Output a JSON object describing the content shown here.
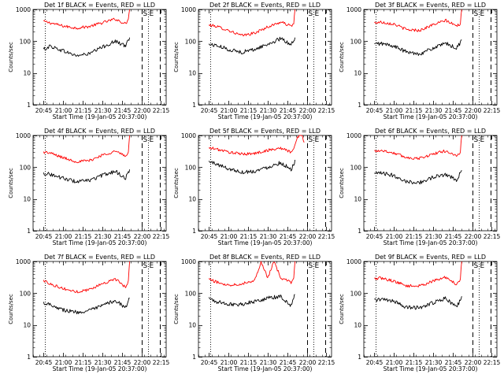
{
  "chart_data": [
    {
      "type": "line",
      "title": "Det 1f BLACK = Events, RED = LLD",
      "xlabel": "Start Time (19-Jan-05 20:37:00)",
      "ylabel": "Counts/sec",
      "yscale": "log",
      "ylim": [
        1,
        1000
      ],
      "xlim": [
        "20:37",
        "22:19"
      ],
      "x_ticks": [
        "20:45",
        "21:00",
        "21:15",
        "21:30",
        "21:45",
        "22:00",
        "22:15"
      ],
      "y_ticks": [
        "1",
        "10",
        "100",
        "1000"
      ],
      "markers": {
        "dotted": [
          "20:46",
          "22:05"
        ],
        "dashed": [
          "22:00",
          "22:14"
        ],
        "labels": [
          "S",
          "E"
        ]
      },
      "series": [
        {
          "color": "#ff0000",
          "x": [
            "20:45",
            "20:50",
            "21:00",
            "21:10",
            "21:20",
            "21:30",
            "21:40",
            "21:48",
            "21:50",
            "21:51"
          ],
          "values": [
            420,
            380,
            300,
            260,
            290,
            380,
            500,
            350,
            500,
            1100
          ]
        },
        {
          "color": "#000000",
          "x": [
            "20:45",
            "20:50",
            "21:00",
            "21:10",
            "21:20",
            "21:30",
            "21:40",
            "21:48",
            "21:50",
            "21:51"
          ],
          "values": [
            55,
            70,
            50,
            35,
            40,
            65,
            100,
            70,
            110,
            130
          ]
        }
      ]
    },
    {
      "type": "line",
      "title": "Det 2f BLACK = Events, RED = LLD",
      "xlabel": "Start Time (19-Jan-05 20:37:00)",
      "ylabel": "Counts/sec",
      "yscale": "log",
      "ylim": [
        1,
        1000
      ],
      "xlim": [
        "20:37",
        "22:19"
      ],
      "x_ticks": [
        "20:45",
        "21:00",
        "21:15",
        "21:30",
        "21:45",
        "22:00",
        "22:15"
      ],
      "y_ticks": [
        "1",
        "10",
        "100",
        "1000"
      ],
      "markers": {
        "dotted": [
          "20:46",
          "22:05"
        ],
        "dashed": [
          "22:00",
          "22:14"
        ],
        "labels": [
          "S",
          "E"
        ]
      },
      "series": [
        {
          "color": "#ff0000",
          "x": [
            "20:45",
            "20:50",
            "21:00",
            "21:10",
            "21:20",
            "21:30",
            "21:40",
            "21:48",
            "21:50",
            "21:51"
          ],
          "values": [
            320,
            300,
            220,
            150,
            180,
            280,
            400,
            300,
            350,
            1200
          ]
        },
        {
          "color": "#000000",
          "x": [
            "20:45",
            "20:50",
            "21:00",
            "21:10",
            "21:20",
            "21:30",
            "21:40",
            "21:48",
            "21:50",
            "21:51"
          ],
          "values": [
            80,
            75,
            55,
            45,
            55,
            80,
            120,
            80,
            110,
            130
          ]
        }
      ]
    },
    {
      "type": "line",
      "title": "Det 3f BLACK = Events, RED = LLD",
      "xlabel": "Start Time (19-Jan-05 20:37:00)",
      "ylabel": "Counts/sec",
      "yscale": "log",
      "ylim": [
        1,
        1000
      ],
      "xlim": [
        "20:37",
        "22:19"
      ],
      "x_ticks": [
        "20:45",
        "21:00",
        "21:15",
        "21:30",
        "21:45",
        "22:00",
        "22:15"
      ],
      "y_ticks": [
        "1",
        "10",
        "100",
        "1000"
      ],
      "markers": {
        "dotted": [
          "20:46",
          "22:05"
        ],
        "dashed": [
          "22:00",
          "22:14"
        ],
        "labels": [
          "S",
          "E"
        ]
      },
      "series": [
        {
          "color": "#ff0000",
          "x": [
            "20:45",
            "20:50",
            "21:00",
            "21:10",
            "21:20",
            "21:30",
            "21:40",
            "21:48",
            "21:51",
            "21:52"
          ],
          "values": [
            380,
            400,
            350,
            230,
            220,
            330,
            450,
            300,
            350,
            1200
          ]
        },
        {
          "color": "#000000",
          "x": [
            "20:45",
            "20:50",
            "21:00",
            "21:10",
            "21:20",
            "21:30",
            "21:40",
            "21:48",
            "21:51",
            "21:52"
          ],
          "values": [
            80,
            85,
            70,
            45,
            40,
            60,
            85,
            60,
            90,
            110
          ]
        }
      ]
    },
    {
      "type": "line",
      "title": "Det 4f BLACK = Events, RED = LLD",
      "xlabel": "Start Time (19-Jan-05 20:37:00)",
      "ylabel": "Counts/sec",
      "yscale": "log",
      "ylim": [
        1,
        1000
      ],
      "xlim": [
        "20:37",
        "22:19"
      ],
      "x_ticks": [
        "20:45",
        "21:00",
        "21:15",
        "21:30",
        "21:45",
        "22:00",
        "22:15"
      ],
      "y_ticks": [
        "1",
        "10",
        "100",
        "1000"
      ],
      "markers": {
        "dotted": [
          "20:46",
          "22:05"
        ],
        "dashed": [
          "22:00",
          "22:14"
        ],
        "labels": [
          "S",
          "E"
        ]
      },
      "series": [
        {
          "color": "#ff0000",
          "x": [
            "20:45",
            "20:50",
            "21:00",
            "21:10",
            "21:20",
            "21:30",
            "21:40",
            "21:48",
            "21:50",
            "21:51"
          ],
          "values": [
            300,
            280,
            200,
            150,
            160,
            240,
            320,
            220,
            300,
            1100
          ]
        },
        {
          "color": "#000000",
          "x": [
            "20:45",
            "20:50",
            "21:00",
            "21:10",
            "21:20",
            "21:30",
            "21:40",
            "21:48",
            "21:50",
            "21:51"
          ],
          "values": [
            65,
            60,
            45,
            35,
            38,
            55,
            75,
            45,
            70,
            85
          ]
        }
      ]
    },
    {
      "type": "line",
      "title": "Det 5f BLACK = Events, RED = LLD",
      "xlabel": "Start Time (19-Jan-05 20:37:00)",
      "ylabel": "Counts/sec",
      "yscale": "log",
      "ylim": [
        1,
        1000
      ],
      "xlim": [
        "20:37",
        "22:19"
      ],
      "x_ticks": [
        "20:45",
        "21:00",
        "21:15",
        "21:30",
        "21:45",
        "22:00",
        "22:15"
      ],
      "y_ticks": [
        "1",
        "10",
        "100",
        "1000"
      ],
      "markers": {
        "dotted": [
          "20:46",
          "22:05"
        ],
        "dashed": [
          "22:00",
          "22:14"
        ],
        "labels": [
          "S",
          "E"
        ]
      },
      "series": [
        {
          "color": "#ff0000",
          "x": [
            "20:45",
            "20:50",
            "21:00",
            "21:10",
            "21:20",
            "21:30",
            "21:40",
            "21:48",
            "21:50",
            "21:53",
            "21:56",
            "21:58"
          ],
          "values": [
            400,
            380,
            300,
            260,
            270,
            340,
            400,
            300,
            380,
            900,
            1100,
            600
          ]
        },
        {
          "color": "#000000",
          "x": [
            "20:45",
            "20:50",
            "21:00",
            "21:10",
            "21:20",
            "21:30",
            "21:40",
            "21:48",
            "21:50",
            "21:51"
          ],
          "values": [
            150,
            130,
            90,
            70,
            75,
            100,
            140,
            85,
            120,
            170
          ]
        }
      ]
    },
    {
      "type": "line",
      "title": "Det 6f BLACK = Events, RED = LLD",
      "xlabel": "Start Time (19-Jan-05 20:37:00)",
      "ylabel": "Counts/sec",
      "yscale": "log",
      "ylim": [
        1,
        1000
      ],
      "xlim": [
        "20:37",
        "22:19"
      ],
      "x_ticks": [
        "20:45",
        "21:00",
        "21:15",
        "21:30",
        "21:45",
        "22:00",
        "22:15"
      ],
      "y_ticks": [
        "1",
        "10",
        "100",
        "1000"
      ],
      "markers": {
        "dotted": [
          "20:46",
          "22:05"
        ],
        "dashed": [
          "22:00",
          "22:14"
        ],
        "labels": [
          "S",
          "E"
        ]
      },
      "series": [
        {
          "color": "#ff0000",
          "x": [
            "20:45",
            "20:50",
            "21:00",
            "21:10",
            "21:20",
            "21:30",
            "21:40",
            "21:48",
            "21:51",
            "21:52"
          ],
          "values": [
            320,
            340,
            280,
            200,
            190,
            260,
            330,
            220,
            300,
            1200
          ]
        },
        {
          "color": "#000000",
          "x": [
            "20:45",
            "20:50",
            "21:00",
            "21:10",
            "21:20",
            "21:30",
            "21:40",
            "21:48",
            "21:51",
            "21:52"
          ],
          "values": [
            60,
            65,
            55,
            35,
            33,
            48,
            60,
            40,
            65,
            80
          ]
        }
      ]
    },
    {
      "type": "line",
      "title": "Det 7f BLACK = Events, RED = LLD",
      "xlabel": "Start Time (19-Jan-05 20:37:00)",
      "ylabel": "Counts/sec",
      "yscale": "log",
      "ylim": [
        1,
        1000
      ],
      "xlim": [
        "20:37",
        "22:19"
      ],
      "x_ticks": [
        "20:45",
        "21:00",
        "21:15",
        "21:30",
        "21:45",
        "22:00",
        "22:15"
      ],
      "y_ticks": [
        "1",
        "10",
        "100",
        "1000"
      ],
      "markers": {
        "dotted": [
          "20:46",
          "22:05"
        ],
        "dashed": [
          "22:00",
          "22:14"
        ],
        "labels": [
          "S",
          "E"
        ]
      },
      "series": [
        {
          "color": "#ff0000",
          "x": [
            "20:45",
            "20:50",
            "21:00",
            "21:10",
            "21:20",
            "21:30",
            "21:40",
            "21:48",
            "21:50",
            "21:51"
          ],
          "values": [
            250,
            200,
            140,
            110,
            130,
            200,
            280,
            150,
            250,
            1100
          ]
        },
        {
          "color": "#000000",
          "x": [
            "20:45",
            "20:50",
            "21:00",
            "21:10",
            "21:20",
            "21:30",
            "21:40",
            "21:48",
            "21:50",
            "21:51"
          ],
          "values": [
            50,
            45,
            30,
            25,
            28,
            40,
            60,
            35,
            55,
            70
          ]
        }
      ]
    },
    {
      "type": "line",
      "title": "Det 8f BLACK = Events, RED = LLD",
      "xlabel": "Start Time (19-Jan-05 20:37:00)",
      "ylabel": "Counts/sec",
      "yscale": "log",
      "ylim": [
        1,
        1000
      ],
      "xlim": [
        "20:37",
        "22:19"
      ],
      "x_ticks": [
        "20:45",
        "21:00",
        "21:15",
        "21:30",
        "21:45",
        "22:00",
        "22:15"
      ],
      "y_ticks": [
        "1",
        "10",
        "100",
        "1000"
      ],
      "markers": {
        "dotted": [
          "20:46",
          "22:05"
        ],
        "dashed": [
          "22:00",
          "22:14"
        ],
        "labels": [
          "S",
          "E"
        ]
      },
      "series": [
        {
          "color": "#ff0000",
          "x": [
            "20:45",
            "20:50",
            "21:00",
            "21:10",
            "21:20",
            "21:25",
            "21:30",
            "21:35",
            "21:40",
            "21:48",
            "21:50",
            "21:51"
          ],
          "values": [
            280,
            230,
            180,
            200,
            250,
            1000,
            300,
            1000,
            300,
            220,
            300,
            1100
          ]
        },
        {
          "color": "#000000",
          "x": [
            "20:45",
            "20:50",
            "21:00",
            "21:10",
            "21:20",
            "21:30",
            "21:40",
            "21:48",
            "21:50",
            "21:51"
          ],
          "values": [
            70,
            55,
            45,
            45,
            55,
            70,
            80,
            40,
            70,
            90
          ]
        }
      ]
    },
    {
      "type": "line",
      "title": "Det 9f BLACK = Events, RED = LLD",
      "xlabel": "Start Time (19-Jan-05 20:37:00)",
      "ylabel": "Counts/sec",
      "yscale": "log",
      "ylim": [
        1,
        1000
      ],
      "xlim": [
        "20:37",
        "22:19"
      ],
      "x_ticks": [
        "20:45",
        "21:00",
        "21:15",
        "21:30",
        "21:45",
        "22:00",
        "22:15"
      ],
      "y_ticks": [
        "1",
        "10",
        "100",
        "1000"
      ],
      "markers": {
        "dotted": [
          "20:46",
          "22:05"
        ],
        "dashed": [
          "22:00",
          "22:14"
        ],
        "labels": [
          "S",
          "E"
        ]
      },
      "series": [
        {
          "color": "#ff0000",
          "x": [
            "20:45",
            "20:50",
            "21:00",
            "21:10",
            "21:20",
            "21:30",
            "21:40",
            "21:48",
            "21:51",
            "21:52"
          ],
          "values": [
            280,
            300,
            240,
            170,
            170,
            240,
            320,
            190,
            280,
            1200
          ]
        },
        {
          "color": "#000000",
          "x": [
            "20:45",
            "20:50",
            "21:00",
            "21:10",
            "21:20",
            "21:30",
            "21:40",
            "21:48",
            "21:51",
            "21:52"
          ],
          "values": [
            60,
            65,
            55,
            35,
            35,
            50,
            70,
            35,
            60,
            80
          ]
        }
      ]
    }
  ]
}
